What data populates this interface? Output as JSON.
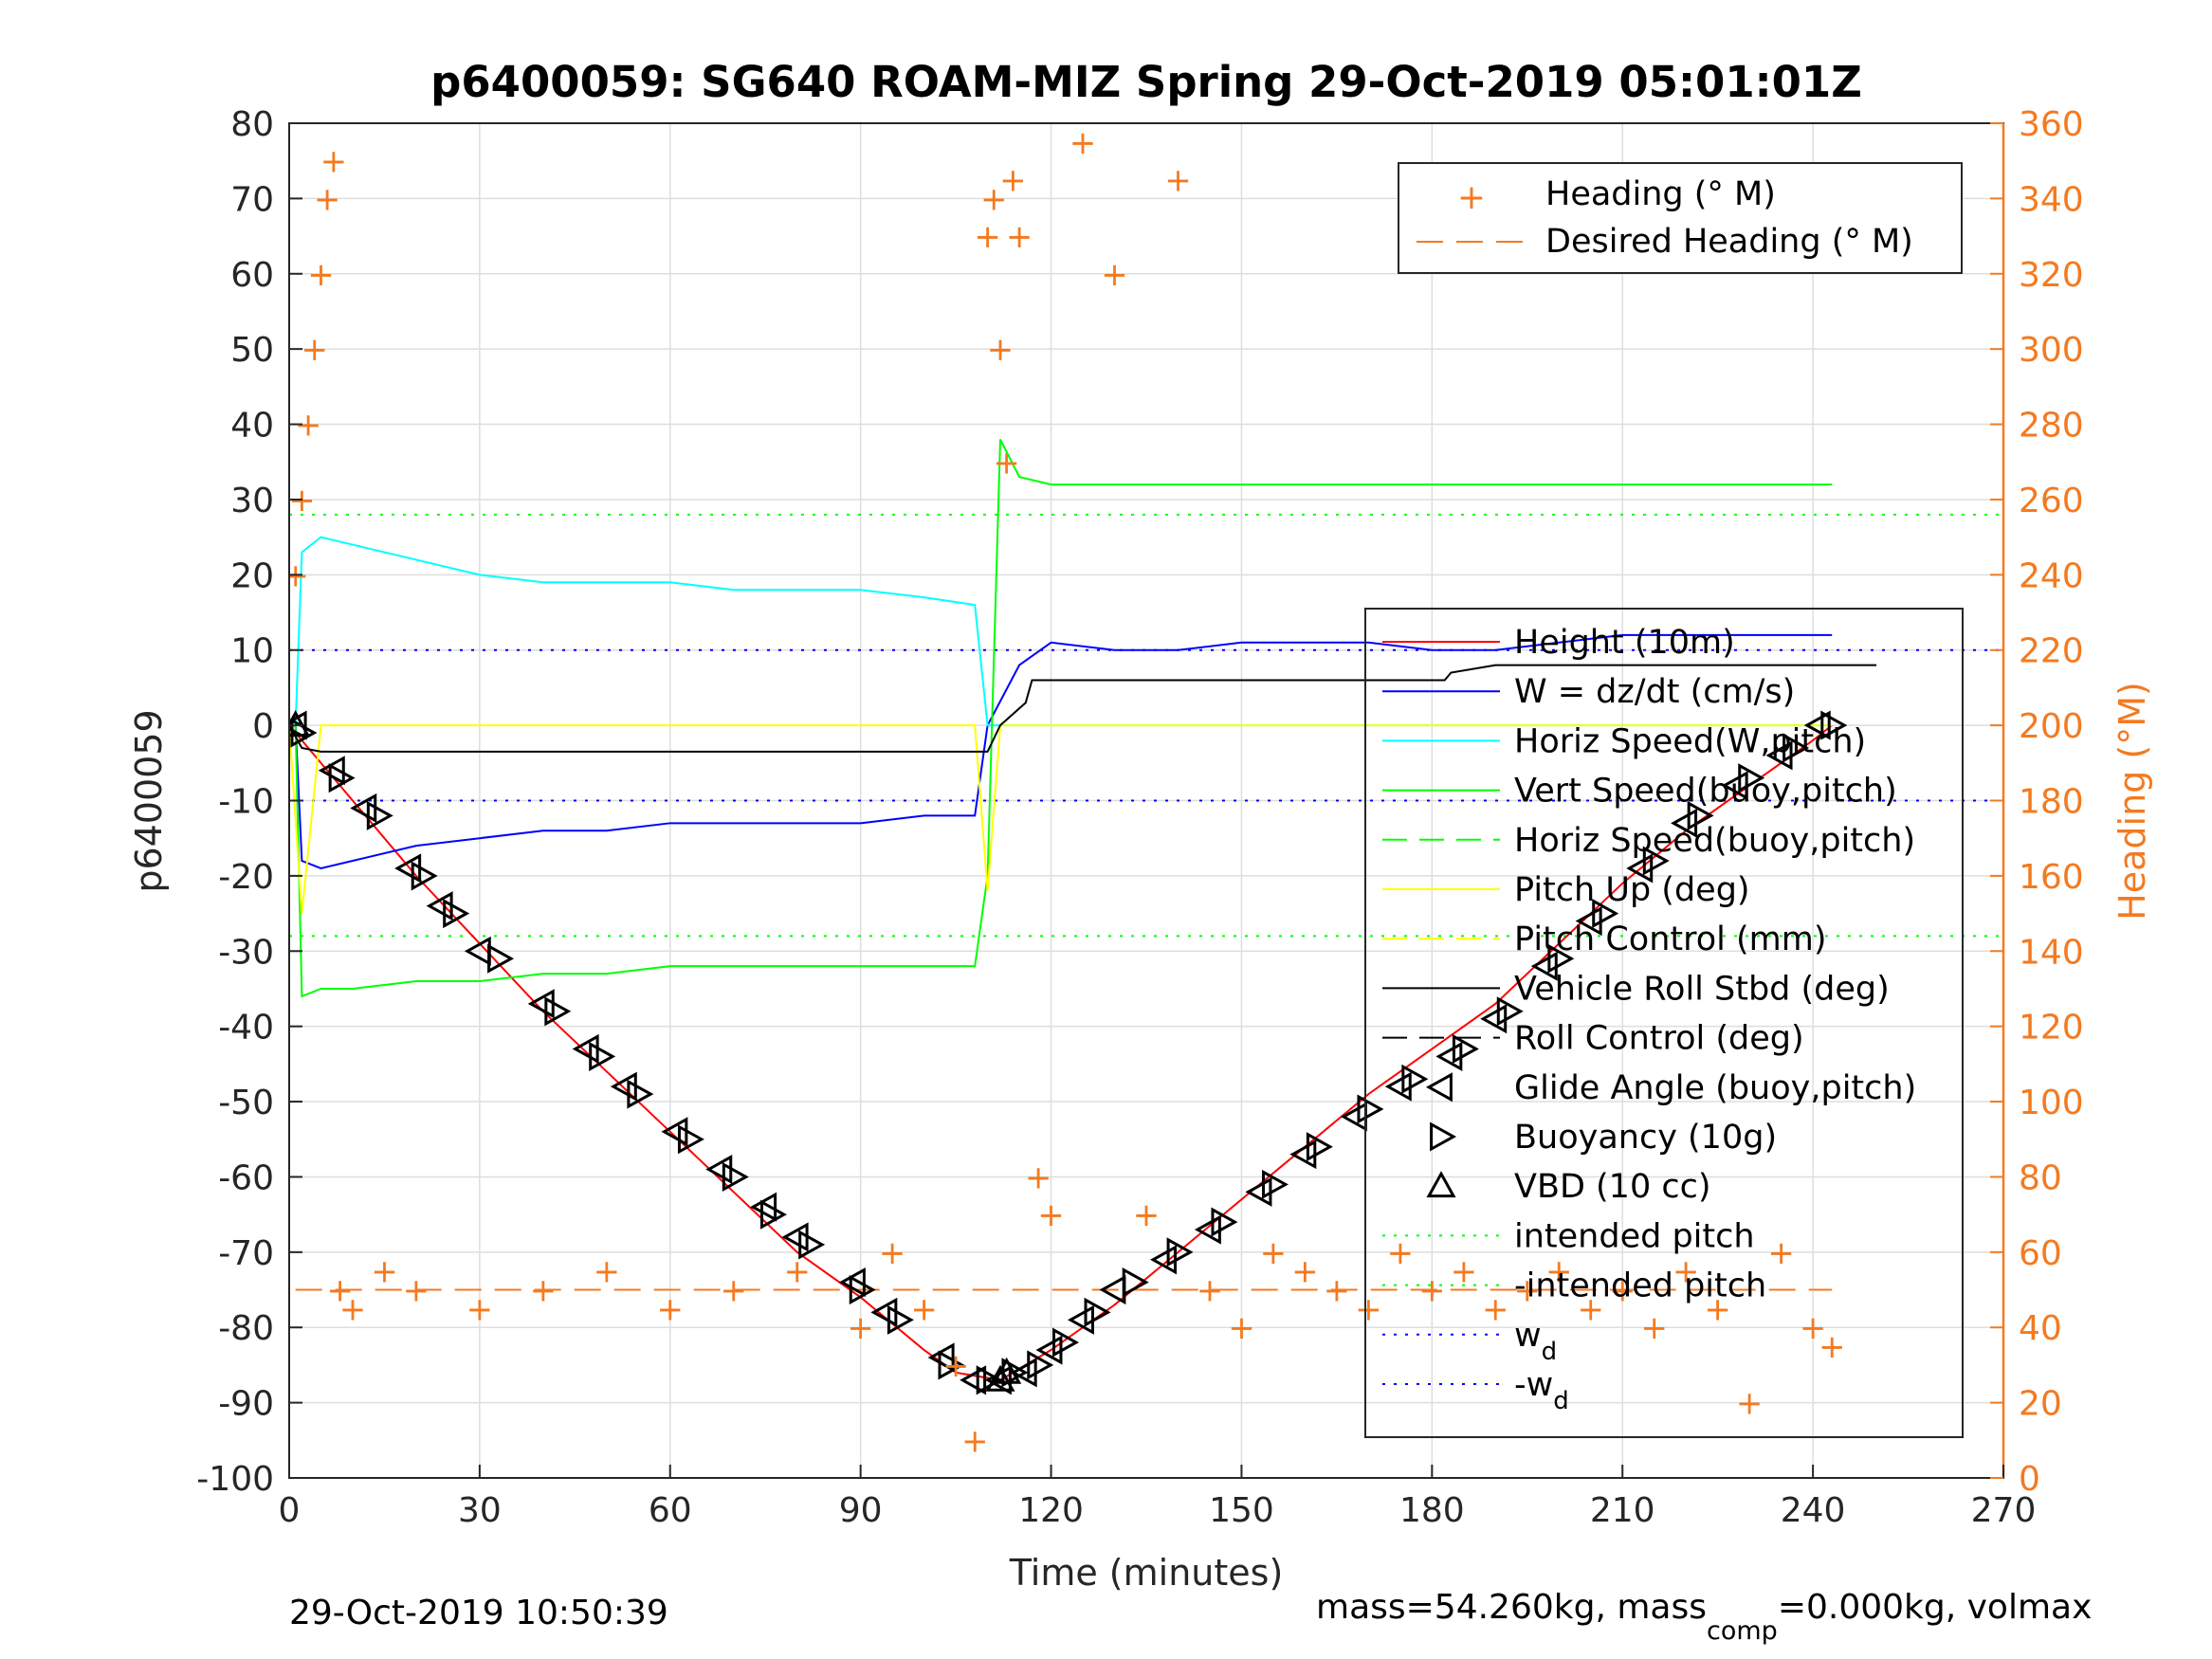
{
  "chart_data": {
    "type": "line",
    "title": "p6400059: SG640 ROAM-MIZ Spring 29-Oct-2019 05:01:01Z",
    "xlabel": "Time (minutes)",
    "ylabel": "p6400059",
    "y2label": "Heading (°M)",
    "xlim": [
      0,
      270
    ],
    "ylim": [
      -100,
      80
    ],
    "y2lim": [
      0,
      360
    ],
    "xticks": [
      "0",
      "30",
      "60",
      "90",
      "120",
      "150",
      "180",
      "210",
      "240",
      "270"
    ],
    "yticks": [
      "80",
      "70",
      "60",
      "50",
      "40",
      "30",
      "20",
      "10",
      "0",
      "-10",
      "-20",
      "-30",
      "-40",
      "-50",
      "-60",
      "-70",
      "-80",
      "-90",
      "-100"
    ],
    "y2ticks": [
      "360",
      "340",
      "320",
      "300",
      "280",
      "260",
      "240",
      "220",
      "200",
      "180",
      "160",
      "140",
      "120",
      "100",
      "80",
      "60",
      "40",
      "20",
      "0"
    ],
    "grid": true,
    "legend_right_top": [
      "Heading (° M)",
      "Desired Heading (° M)"
    ],
    "legend_main": [
      {
        "label": "Height (10m)",
        "color": "#ff0000",
        "style": "solid"
      },
      {
        "label": "W = dz/dt (cm/s)",
        "color": "#0000ff",
        "style": "solid"
      },
      {
        "label": "Horiz Speed(W,pitch)",
        "color": "#00ffff",
        "style": "solid"
      },
      {
        "label": "Vert Speed(buoy,pitch)",
        "color": "#00ff00",
        "style": "solid"
      },
      {
        "label": "Horiz Speed(buoy,pitch)",
        "color": "#00ff00",
        "style": "dash"
      },
      {
        "label": "Pitch Up (deg)",
        "color": "#ffff00",
        "style": "solid"
      },
      {
        "label": "Pitch Control (mm)",
        "color": "#ffff00",
        "style": "dash"
      },
      {
        "label": "Vehicle Roll Stbd (deg)",
        "color": "#000000",
        "style": "solid"
      },
      {
        "label": "Roll Control (deg)",
        "color": "#000000",
        "style": "dash"
      },
      {
        "label": "Glide Angle (buoy,pitch)",
        "color": "#000000",
        "style": "tri-left"
      },
      {
        "label": "Buoyancy (10g)",
        "color": "#000000",
        "style": "tri-right"
      },
      {
        "label": "VBD (10 cc)",
        "color": "#000000",
        "style": "tri-up"
      },
      {
        "label": "intended pitch",
        "color": "#00ff00",
        "style": "dot"
      },
      {
        "label": "-intended pitch",
        "color": "#00ff00",
        "style": "dot"
      },
      {
        "label": "w",
        "sub": "d",
        "color": "#0000ff",
        "style": "dot"
      },
      {
        "label": "-w",
        "sub": "d",
        "color": "#0000ff",
        "style": "dot"
      }
    ],
    "ref_lines": {
      "intended_pitch": 28,
      "w_d": 10
    },
    "desired_heading": 50,
    "series": [
      {
        "name": "Height (10m)",
        "color": "#ff0000",
        "x": [
          0,
          10,
          20,
          30,
          40,
          50,
          60,
          70,
          80,
          90,
          100,
          105,
          112,
          120,
          130,
          140,
          150,
          160,
          170,
          180,
          190,
          200,
          210,
          220,
          230,
          240,
          243
        ],
        "y": [
          0,
          -10,
          -20,
          -29,
          -38,
          -46,
          -54,
          -62,
          -70,
          -76,
          -83,
          -86,
          -87,
          -83,
          -77,
          -70,
          -63,
          -56,
          -49,
          -43,
          -37,
          -29,
          -21,
          -14,
          -8,
          -2,
          0
        ]
      },
      {
        "name": "W = dz/dt (cm/s)",
        "color": "#0000ff",
        "x": [
          1,
          2,
          5,
          10,
          20,
          30,
          40,
          50,
          60,
          70,
          80,
          90,
          100,
          108,
          110,
          115,
          120,
          130,
          140,
          150,
          160,
          170,
          180,
          190,
          200,
          210,
          220,
          230,
          243
        ],
        "y": [
          0,
          -18,
          -19,
          -18,
          -16,
          -15,
          -14,
          -14,
          -13,
          -13,
          -13,
          -13,
          -12,
          -12,
          0,
          8,
          11,
          10,
          10,
          11,
          11,
          11,
          10,
          10,
          11,
          12,
          12,
          12,
          12
        ]
      },
      {
        "name": "Horiz Speed(W,pitch)",
        "color": "#00ffff",
        "x": [
          1,
          2,
          5,
          10,
          20,
          30,
          40,
          50,
          60,
          70,
          80,
          90,
          100,
          108,
          110,
          111,
          243
        ],
        "y": [
          0,
          23,
          25,
          24,
          22,
          20,
          19,
          19,
          19,
          18,
          18,
          18,
          17,
          16,
          0,
          0,
          0
        ]
      },
      {
        "name": "Vert Speed(buoy,pitch)",
        "color": "#00ff00",
        "x": [
          1,
          2,
          5,
          10,
          20,
          30,
          40,
          50,
          60,
          70,
          80,
          90,
          100,
          108,
          110,
          112,
          115,
          120,
          130,
          140,
          150,
          160,
          170,
          180,
          190,
          200,
          210,
          220,
          230,
          243
        ],
        "y": [
          0,
          -36,
          -35,
          -35,
          -34,
          -34,
          -33,
          -33,
          -32,
          -32,
          -32,
          -32,
          -32,
          -32,
          -20,
          38,
          33,
          32,
          32,
          32,
          32,
          32,
          32,
          32,
          32,
          32,
          32,
          32,
          32,
          32
        ]
      },
      {
        "name": "Pitch Up (deg)",
        "color": "#ffff00",
        "x": [
          0,
          2,
          5,
          10,
          20,
          30,
          40,
          50,
          60,
          70,
          80,
          90,
          100,
          108,
          110,
          112,
          115,
          120,
          130,
          140,
          150,
          160,
          170,
          180,
          190,
          200,
          210,
          220,
          230,
          243
        ],
        "y": [
          0,
          -25,
          0,
          0,
          0,
          0,
          0,
          0,
          0,
          0,
          0,
          0,
          0,
          0,
          -22,
          0,
          0,
          0,
          0,
          0,
          0,
          0,
          0,
          0,
          0,
          0,
          0,
          0,
          0,
          0
        ]
      },
      {
        "name": "Vehicle Roll Stbd (deg)",
        "color": "#000000",
        "x": [
          0,
          2,
          5,
          110,
          112,
          116,
          117,
          160,
          175,
          182,
          183,
          190,
          250
        ],
        "y": [
          0,
          -3,
          -3.5,
          -3.5,
          0,
          3,
          6,
          6,
          6,
          6,
          7,
          8,
          8
        ]
      },
      {
        "name": "Glide Angle (buoy,pitch)",
        "color": "#000000",
        "x": [
          1,
          7,
          12,
          19,
          24,
          30,
          40,
          47,
          53,
          61,
          68,
          75,
          80,
          89,
          94,
          103,
          108,
          112,
          116,
          120,
          125,
          130,
          138,
          145,
          153,
          160,
          168,
          175,
          183,
          190,
          198,
          205,
          213,
          220,
          228,
          235,
          241
        ],
        "y": [
          0,
          -6,
          -11,
          -19,
          -24,
          -30,
          -37,
          -43,
          -48,
          -54,
          -59,
          -64,
          -68,
          -74,
          -78,
          -84,
          -87,
          -87,
          -86,
          -83,
          -79,
          -75,
          -71,
          -67,
          -62,
          -57,
          -52,
          -48,
          -44,
          -39,
          -32,
          -26,
          -19,
          -13,
          -8,
          -4,
          0
        ]
      },
      {
        "name": "Buoyancy (10g)",
        "color": "#000000",
        "x": [
          2,
          8,
          14,
          21,
          26,
          33,
          42,
          49,
          55,
          63,
          70,
          76,
          82,
          90,
          96,
          104,
          110,
          114,
          118,
          122,
          127,
          133,
          140,
          147,
          155,
          162,
          170,
          177,
          185,
          192,
          200,
          207,
          215,
          222,
          230,
          237,
          243
        ],
        "y": [
          -1,
          -7,
          -12,
          -20,
          -25,
          -31,
          -38,
          -44,
          -49,
          -55,
          -60,
          -65,
          -69,
          -75,
          -79,
          -85,
          -87,
          -86,
          -85,
          -82,
          -78,
          -74,
          -70,
          -66,
          -61,
          -56,
          -51,
          -47,
          -43,
          -38,
          -31,
          -25,
          -18,
          -12,
          -7,
          -3,
          0
        ]
      },
      {
        "name": "VBD (10 cc)",
        "color": "#000000",
        "x": [
          1,
          112,
          113
        ],
        "y": [
          0,
          -87,
          -86
        ]
      }
    ],
    "heading_series": {
      "name": "Heading (° M)",
      "color": "#f47a20",
      "x": [
        1,
        2,
        3,
        4,
        5,
        6,
        7,
        8,
        10,
        15,
        20,
        30,
        40,
        50,
        60,
        70,
        80,
        90,
        95,
        100,
        105,
        108,
        110,
        111,
        112,
        113,
        114,
        115,
        118,
        120,
        125,
        130,
        135,
        140,
        145,
        150,
        155,
        160,
        165,
        170,
        175,
        180,
        185,
        190,
        195,
        200,
        205,
        210,
        215,
        220,
        225,
        230,
        235,
        240,
        243
      ],
      "y": [
        240,
        260,
        280,
        300,
        320,
        340,
        350,
        50,
        45,
        55,
        50,
        45,
        50,
        55,
        45,
        50,
        55,
        40,
        60,
        45,
        30,
        10,
        330,
        340,
        300,
        270,
        345,
        330,
        80,
        70,
        355,
        320,
        70,
        345,
        50,
        40,
        60,
        55,
        50,
        45,
        60,
        50,
        55,
        45,
        50,
        55,
        45,
        50,
        40,
        55,
        45,
        20,
        60,
        40,
        35
      ]
    },
    "footer_left": "29-Oct-2019 10:50:39",
    "footer_right": {
      "part1": "mass=54.260kg, mass",
      "sub": "comp",
      "part2": "=0.000kg, volmax"
    }
  }
}
